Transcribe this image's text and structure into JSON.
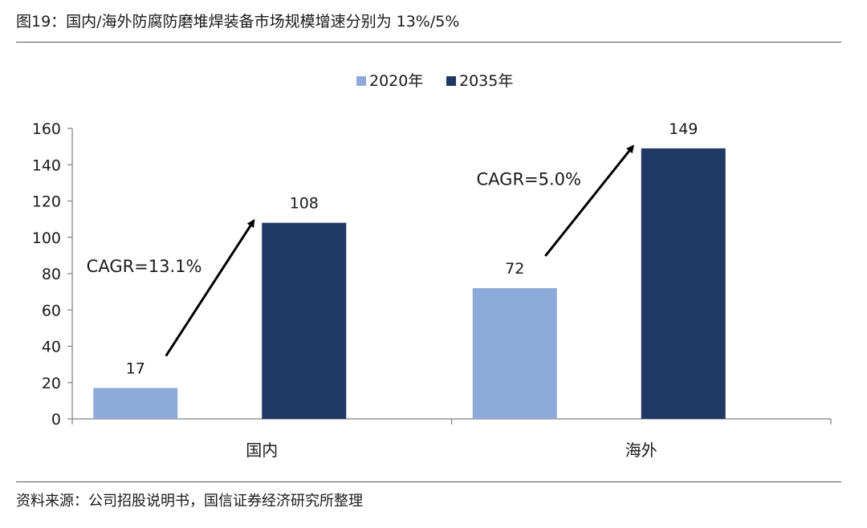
{
  "figure": {
    "title": "图19：国内/海外防腐防磨堆焊装备市场规模增速分别为 13%/5%",
    "source": "资料来源：公司招股说明书，国信证券经济研究所整理"
  },
  "chart_data": {
    "type": "bar",
    "categories": [
      "国内",
      "海外"
    ],
    "series": [
      {
        "name": "2020年",
        "color": "#8eaadb",
        "values": [
          17,
          72
        ]
      },
      {
        "name": "2035年",
        "color": "#203864",
        "values": [
          108,
          149
        ]
      }
    ],
    "ylim": [
      0,
      160
    ],
    "yticks": [
      0,
      20,
      40,
      60,
      80,
      100,
      120,
      140,
      160
    ],
    "legend_position": "top-center",
    "grid": false,
    "annotations": [
      {
        "text": "CAGR=13.1%",
        "category": "国内"
      },
      {
        "text": "CAGR=5.0%",
        "category": "海外"
      }
    ],
    "title": "",
    "xlabel": "",
    "ylabel": ""
  }
}
